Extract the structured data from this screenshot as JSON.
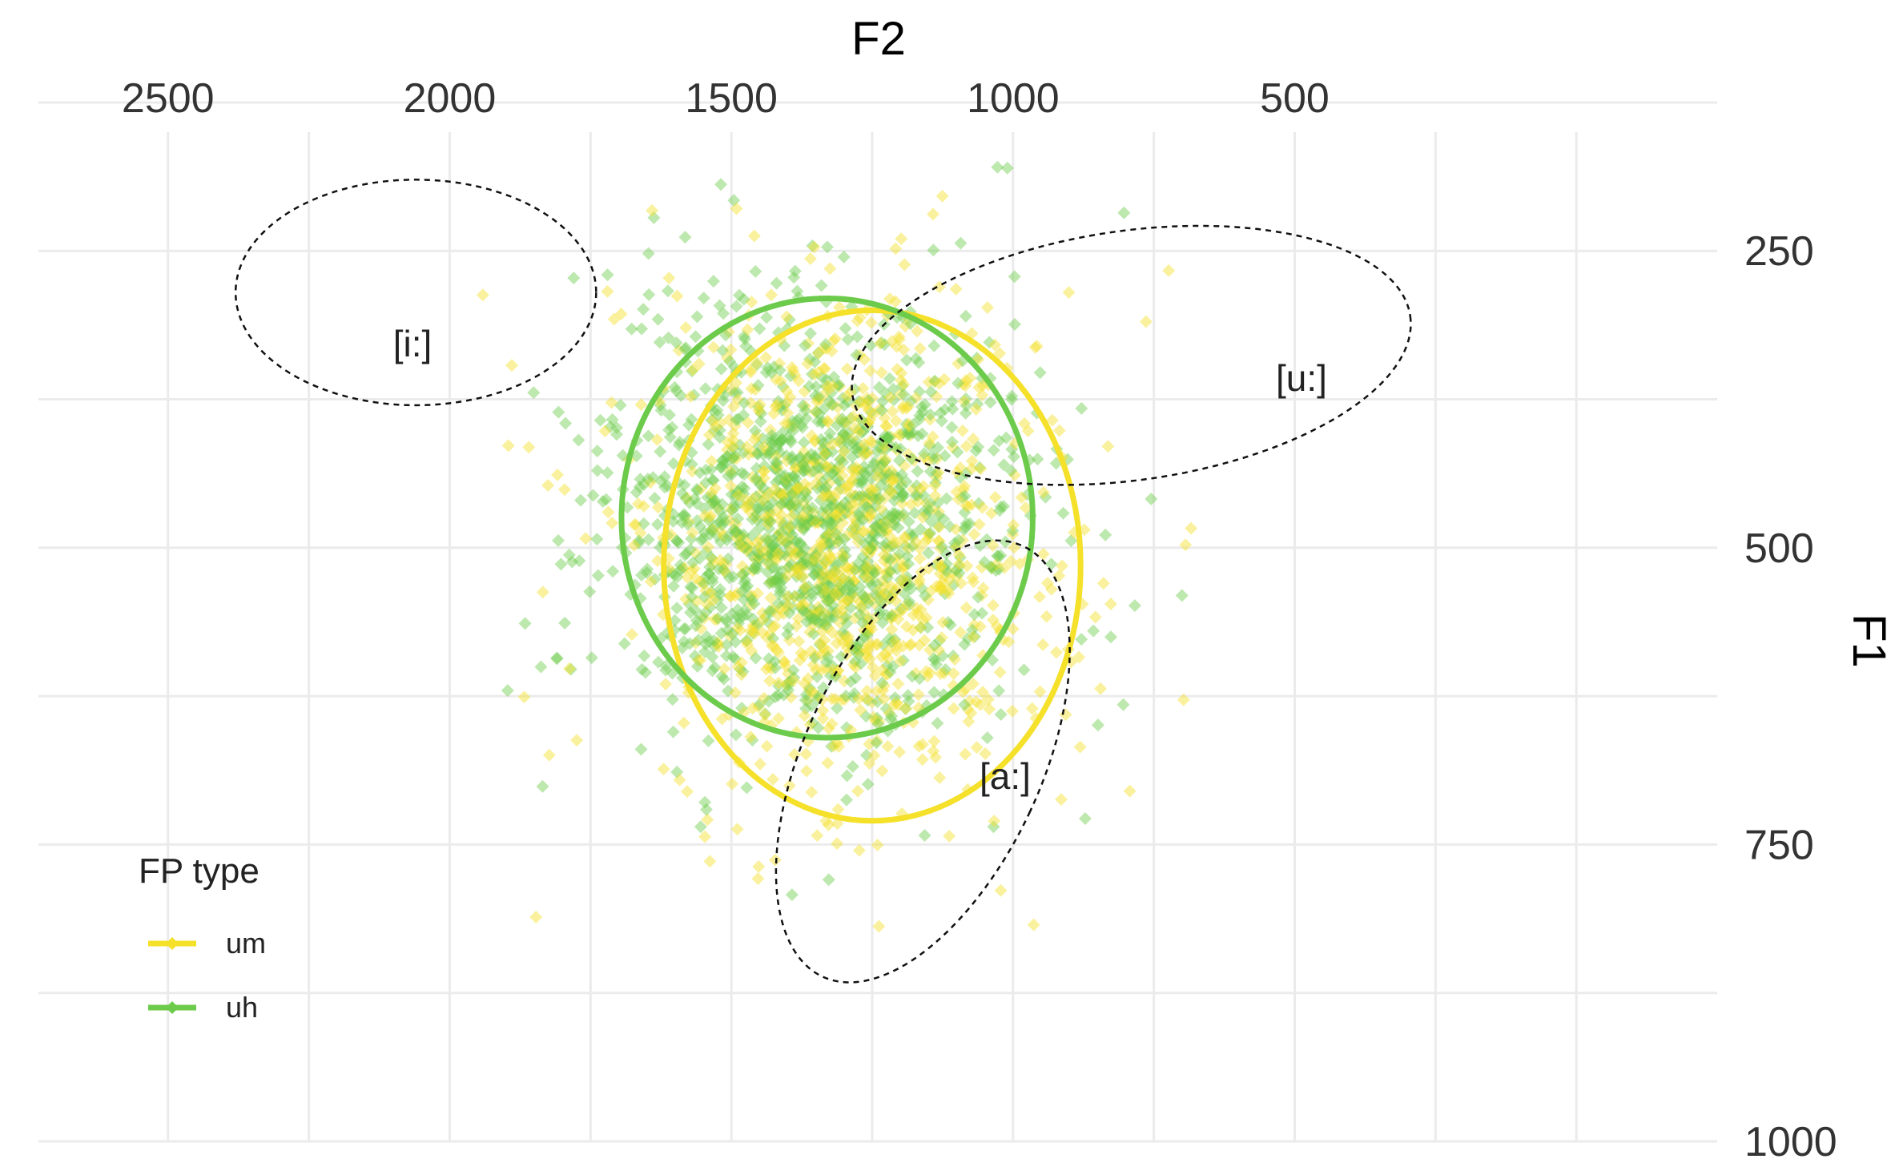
{
  "chart_data": {
    "type": "scatter",
    "title": "",
    "xlabel": "F2",
    "ylabel": "F1",
    "xlim": [
      2730,
      -250
    ],
    "ylim": [
      1000,
      150
    ],
    "x_reversed": true,
    "y_reversed": true,
    "x_ticks": [
      2500,
      2000,
      1500,
      1000,
      500
    ],
    "y_ticks": [
      250,
      500,
      750,
      1000
    ],
    "x_axis_position": "top",
    "y_axis_position": "right",
    "grid": true,
    "legend": {
      "title": "FP type",
      "position": "bottom-left",
      "entries": [
        {
          "label": "um",
          "color": "#F5E02A"
        },
        {
          "label": "uh",
          "color": "#6CCB4B"
        }
      ]
    },
    "series": [
      {
        "name": "um",
        "color": "#F5E02A",
        "point_count": 1100,
        "center": {
          "F2": 1300,
          "F1": 505
        },
        "spread": {
          "F2": 150,
          "F1": 95
        },
        "ellipse": {
          "center_F2": 1250,
          "center_F1": 515,
          "radius_F2": 370,
          "radius_F1": 215,
          "angle_deg": 0
        }
      },
      {
        "name": "uh",
        "color": "#6CCB4B",
        "point_count": 1300,
        "center": {
          "F2": 1360,
          "F1": 475
        },
        "spread": {
          "F2": 160,
          "F1": 80
        },
        "ellipse": {
          "center_F2": 1330,
          "center_F1": 475,
          "radius_F2": 365,
          "radius_F1": 185,
          "angle_deg": 0
        }
      }
    ],
    "reference_vowels": [
      {
        "label": "[i:]",
        "center_F2": 2060,
        "center_F1": 285,
        "radius_F2": 320,
        "radius_F1": 95,
        "angle_deg": 0
      },
      {
        "label": "[u:]",
        "center_F2": 790,
        "center_F1": 338,
        "radius_F2": 500,
        "radius_F1": 105,
        "angle_deg": -8
      },
      {
        "label": "[a:]",
        "center_F2": 1160,
        "center_F1": 680,
        "radius_F2": 210,
        "radius_F1": 200,
        "angle_deg": 25
      }
    ]
  }
}
